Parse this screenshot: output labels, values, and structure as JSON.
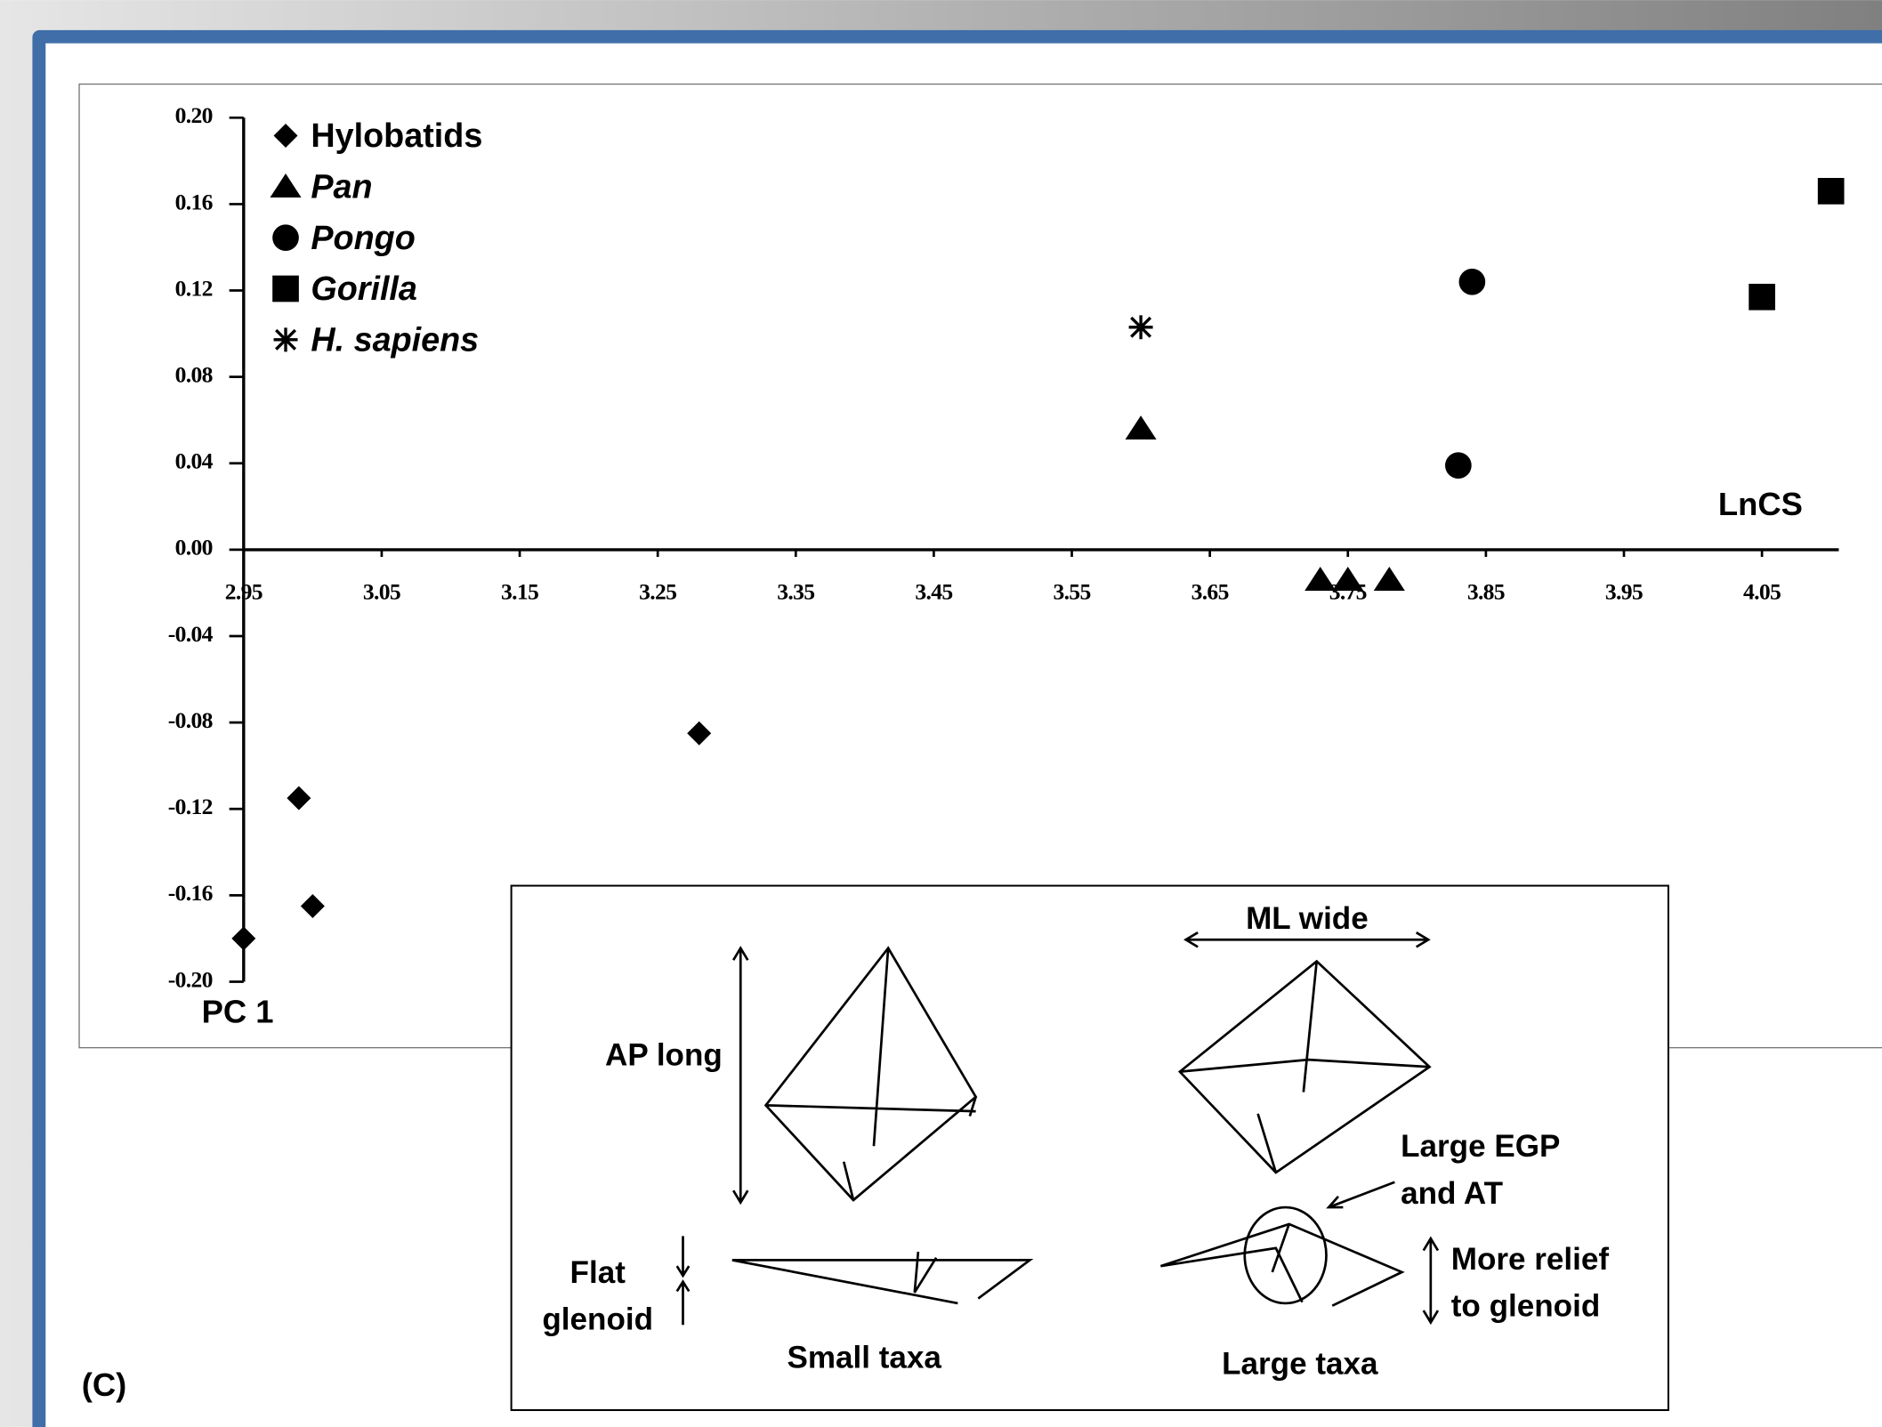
{
  "chart_data": {
    "type": "scatter",
    "x_label": "LnCS",
    "y_label": "PC 1",
    "xlim": [
      2.95,
      4.1
    ],
    "ylim": [
      -0.2,
      0.2
    ],
    "xticks": [
      2.95,
      3.05,
      3.15,
      3.25,
      3.35,
      3.45,
      3.55,
      3.65,
      3.75,
      3.85,
      3.95,
      4.05
    ],
    "yticks": [
      {
        "value": 0.2,
        "label": "0.20"
      },
      0.16,
      0.12,
      0.08,
      0.04,
      {
        "value": 0,
        "label": "0.00"
      },
      -0.04,
      -0.08,
      -0.12,
      -0.16,
      {
        "value": -0.2,
        "label": "-0.20"
      }
    ],
    "legend": "upper left",
    "series": [
      {
        "name": "Hylobatids",
        "color": "#000000",
        "marker": "diamond",
        "italic": false,
        "x": [
          2.99,
          3.0,
          2.95,
          3.28
        ],
        "values": [
          -0.115,
          -0.165,
          -0.18,
          -0.085
        ]
      },
      {
        "name": "Pan",
        "color": "#000000",
        "marker": "triangle",
        "italic": true,
        "x": [
          3.6,
          3.73,
          3.75,
          3.78
        ],
        "values": [
          0.056,
          -0.014,
          -0.014,
          -0.014
        ]
      },
      {
        "name": "Pongo",
        "color": "#000000",
        "marker": "circle",
        "italic": true,
        "x": [
          3.84,
          3.83
        ],
        "values": [
          0.124,
          0.039
        ]
      },
      {
        "name": "Gorilla",
        "color": "#000000",
        "marker": "square",
        "italic": true,
        "x": [
          4.05,
          4.1
        ],
        "values": [
          0.117,
          0.166
        ]
      },
      {
        "name": "H. sapiens",
        "color": "#000000",
        "marker": "asterisk",
        "italic": true,
        "x": [
          3.6
        ],
        "values": [
          0.103
        ]
      }
    ]
  },
  "panel_label": "(C)",
  "inset": {
    "ml_wide": "ML wide",
    "ap_long": "AP long",
    "large_egp_1": "Large EGP",
    "large_egp_2": "and AT",
    "relief_1": "More relief",
    "relief_2": "to glenoid",
    "flat_1": "Flat",
    "flat_2": "glenoid",
    "small_taxa": "Small taxa",
    "large_taxa": "Large taxa"
  }
}
